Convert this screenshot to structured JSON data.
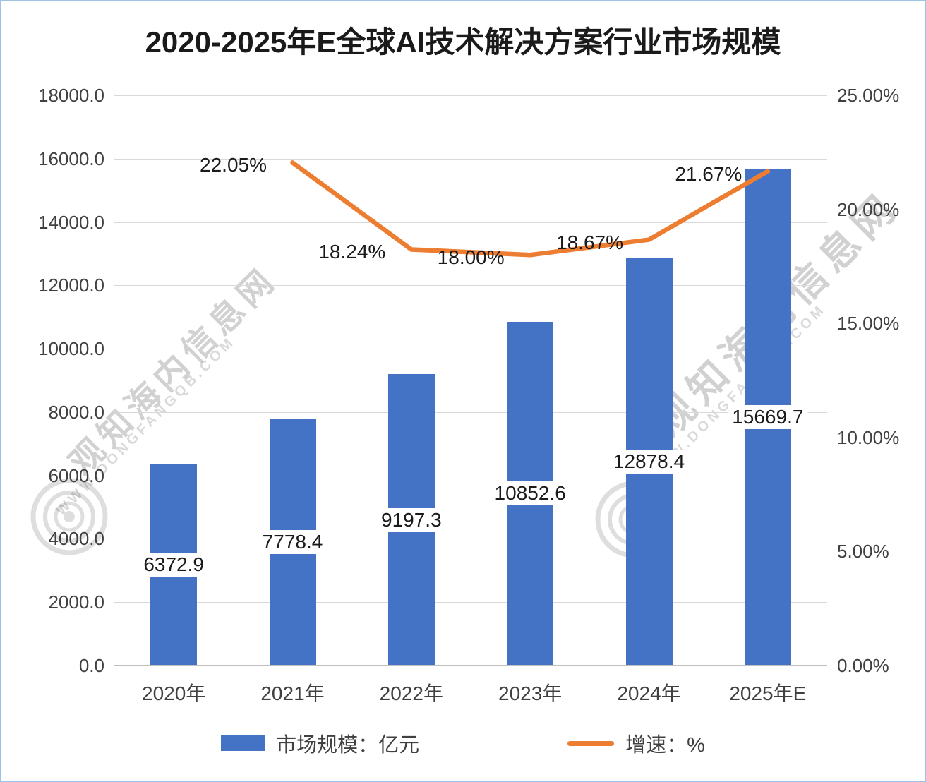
{
  "title": "2020-2025年E全球AI技术解决方案行业市场规模",
  "watermark": {
    "cn": "观知海内信息网",
    "url": "WWW.DONGFANGQB.COM"
  },
  "legend": [
    {
      "label": "市场规模：亿元",
      "type": "bar",
      "color": "#4472C4"
    },
    {
      "label": "增速：%",
      "type": "line",
      "color": "#ED7D31"
    }
  ],
  "colors": {
    "bar": "#4472C4",
    "line": "#ED7D31",
    "grid": "#D9D9D9",
    "axis": "#BFBFBF",
    "border": "#9DC3E6"
  },
  "chart_data": {
    "type": "bar",
    "title": "2020-2025年E全球AI技术解决方案行业市场规模",
    "categories": [
      "2020年",
      "2021年",
      "2022年",
      "2023年",
      "2024年",
      "2025年E"
    ],
    "series": [
      {
        "name": "市场规模：亿元",
        "type": "bar",
        "axis": "left",
        "color": "#4472C4",
        "values": [
          6372.9,
          7778.4,
          9197.3,
          10852.6,
          12878.4,
          15669.7
        ],
        "labels": [
          "6372.9",
          "7778.4",
          "9197.3",
          "10852.6",
          "12878.4",
          "15669.7"
        ]
      },
      {
        "name": "增速：%",
        "type": "line",
        "axis": "right",
        "color": "#ED7D31",
        "values": [
          null,
          22.05,
          18.24,
          18.0,
          18.67,
          21.67
        ],
        "labels": [
          null,
          "22.05%",
          "18.24%",
          "18.00%",
          "18.67%",
          "21.67%"
        ]
      }
    ],
    "left_axis": {
      "min": 0,
      "max": 18000,
      "step": 2000,
      "ticks": [
        "0.0",
        "2000.0",
        "4000.0",
        "6000.0",
        "8000.0",
        "10000.0",
        "12000.0",
        "14000.0",
        "16000.0",
        "18000.0"
      ]
    },
    "right_axis": {
      "min": 0,
      "max": 25,
      "step": 5,
      "ticks": [
        "0.00%",
        "5.00%",
        "10.00%",
        "15.00%",
        "20.00%",
        "25.00%"
      ]
    },
    "grid": true,
    "legend_position": "bottom"
  }
}
